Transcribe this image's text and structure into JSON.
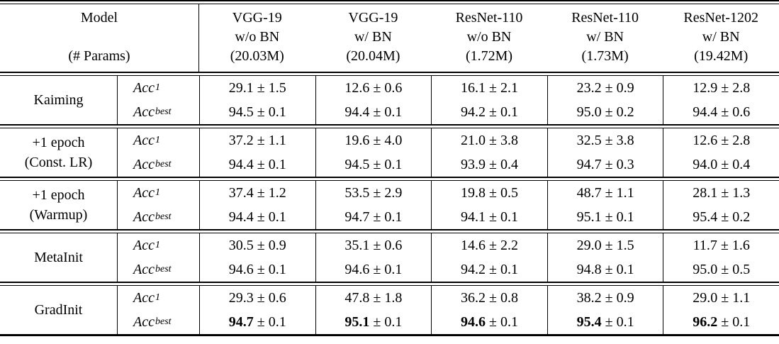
{
  "table": {
    "pm": "±",
    "header": {
      "model_label": "Model",
      "params_label": "(# Params)",
      "columns": [
        {
          "name": "VGG-19",
          "bn": "w/o BN",
          "params": "(20.03M)"
        },
        {
          "name": "VGG-19",
          "bn": "w/ BN",
          "params": "(20.04M)"
        },
        {
          "name": "ResNet-110",
          "bn": "w/o BN",
          "params": "(1.72M)"
        },
        {
          "name": "ResNet-110",
          "bn": "w/ BN",
          "params": "(1.73M)"
        },
        {
          "name": "ResNet-1202",
          "bn": "w/ BN",
          "params": "(19.42M)"
        }
      ]
    },
    "metrics": [
      {
        "base": "Acc",
        "sub": "1"
      },
      {
        "base": "Acc",
        "sub": "best"
      }
    ],
    "rows": [
      {
        "model_lines": [
          "Kaiming"
        ],
        "acc1": [
          [
            "29.1",
            "1.5"
          ],
          [
            "12.6",
            "0.6"
          ],
          [
            "16.1",
            "2.1"
          ],
          [
            "23.2",
            "0.9"
          ],
          [
            "12.9",
            "2.8"
          ]
        ],
        "accbest": [
          [
            "94.5",
            "0.1"
          ],
          [
            "94.4",
            "0.1"
          ],
          [
            "94.2",
            "0.1"
          ],
          [
            "95.0",
            "0.2"
          ],
          [
            "94.4",
            "0.6"
          ]
        ],
        "bold_best": false
      },
      {
        "model_lines": [
          "+1 epoch",
          "(Const. LR)"
        ],
        "acc1": [
          [
            "37.2",
            "1.1"
          ],
          [
            "19.6",
            "4.0"
          ],
          [
            "21.0",
            "3.8"
          ],
          [
            "32.5",
            "3.8"
          ],
          [
            "12.6",
            "2.8"
          ]
        ],
        "accbest": [
          [
            "94.4",
            "0.1"
          ],
          [
            "94.5",
            "0.1"
          ],
          [
            "93.9",
            "0.4"
          ],
          [
            "94.7",
            "0.3"
          ],
          [
            "94.0",
            "0.4"
          ]
        ],
        "bold_best": false
      },
      {
        "model_lines": [
          "+1 epoch",
          "(Warmup)"
        ],
        "acc1": [
          [
            "37.4",
            "1.2"
          ],
          [
            "53.5",
            "2.9"
          ],
          [
            "19.8",
            "0.5"
          ],
          [
            "48.7",
            "1.1"
          ],
          [
            "28.1",
            "1.3"
          ]
        ],
        "accbest": [
          [
            "94.4",
            "0.1"
          ],
          [
            "94.7",
            "0.1"
          ],
          [
            "94.1",
            "0.1"
          ],
          [
            "95.1",
            "0.1"
          ],
          [
            "95.4",
            "0.2"
          ]
        ],
        "bold_best": false
      },
      {
        "model_lines": [
          "MetaInit"
        ],
        "acc1": [
          [
            "30.5",
            "0.9"
          ],
          [
            "35.1",
            "0.6"
          ],
          [
            "14.6",
            "2.2"
          ],
          [
            "29.0",
            "1.5"
          ],
          [
            "11.7",
            "1.6"
          ]
        ],
        "accbest": [
          [
            "94.6",
            "0.1"
          ],
          [
            "94.6",
            "0.1"
          ],
          [
            "94.2",
            "0.1"
          ],
          [
            "94.8",
            "0.1"
          ],
          [
            "95.0",
            "0.5"
          ]
        ],
        "bold_best": false
      },
      {
        "model_lines": [
          "GradInit"
        ],
        "acc1": [
          [
            "29.3",
            "0.6"
          ],
          [
            "47.8",
            "1.8"
          ],
          [
            "36.2",
            "0.8"
          ],
          [
            "38.2",
            "0.9"
          ],
          [
            "29.0",
            "1.1"
          ]
        ],
        "accbest": [
          [
            "94.7",
            "0.1"
          ],
          [
            "95.1",
            "0.1"
          ],
          [
            "94.6",
            "0.1"
          ],
          [
            "95.4",
            "0.1"
          ],
          [
            "96.2",
            "0.1"
          ]
        ],
        "bold_best": true
      }
    ]
  }
}
